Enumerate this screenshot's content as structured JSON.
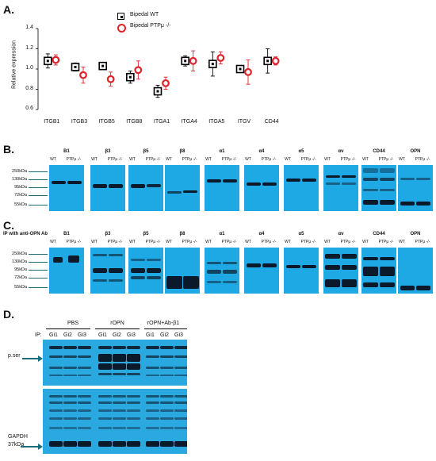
{
  "panelA": {
    "letter": "A.",
    "ylabel": "Relative expression",
    "legend": [
      "Bipedal WT",
      "Bipedal PTPμ -/-"
    ]
  },
  "chart_data": {
    "type": "scatter",
    "categories": [
      "ITGB1",
      "ITGB3",
      "ITGB5",
      "ITGB8",
      "ITGA1",
      "ITGA4",
      "ITGA5",
      "ITGV",
      "CD44"
    ],
    "ylim": [
      0.6,
      1.4
    ],
    "yticks": [
      "0.6",
      "0.8",
      "1.0",
      "1.2",
      "1.4"
    ],
    "series": [
      {
        "name": "Bipedal WT",
        "values": [
          1.08,
          1.02,
          1.03,
          0.92,
          0.78,
          1.08,
          1.05,
          1.0,
          1.08
        ],
        "err": [
          0.07,
          0.04,
          0.02,
          0.06,
          0.06,
          0.05,
          0.12,
          0.03,
          0.12
        ],
        "color": "#000000"
      },
      {
        "name": "Bipedal PTPμ -/-",
        "values": [
          1.09,
          0.94,
          0.9,
          0.99,
          0.86,
          1.08,
          1.11,
          0.97,
          1.08
        ],
        "err": [
          0.05,
          0.08,
          0.07,
          0.09,
          0.06,
          0.1,
          0.06,
          0.12,
          0.04
        ],
        "color": "#e0202a"
      }
    ]
  },
  "panelB": {
    "letter": "B.",
    "labels": [
      "B1",
      "β3",
      "β5",
      "β8",
      "α1",
      "α4",
      "α5",
      "αv",
      "CD44",
      "OPN"
    ],
    "wt": "WT",
    "ko": "PTPμ -/-",
    "mw": [
      "250kDa",
      "130kDa",
      "95kDa",
      "72kDa",
      "55kDa"
    ]
  },
  "panelC": {
    "letter": "C.",
    "ip_label": "IP with anti-OPN Ab",
    "labels": [
      "B1",
      "β3",
      "β5",
      "β8",
      "α1",
      "α4",
      "α5",
      "αv",
      "CD44",
      "OPN"
    ],
    "wt": "WT",
    "ko": "PTPμ -/-",
    "mw": [
      "250kDa",
      "130kDa",
      "95kDa",
      "72kDa",
      "55kDa"
    ]
  },
  "panelD": {
    "letter": "D.",
    "groups": [
      "PBS",
      "rOPN",
      "rOPN+Ab-β1"
    ],
    "ip": "IP:",
    "lanes": [
      "Gi1",
      "Gi2",
      "Gi3",
      "Gi1",
      "Gi2",
      "Gi3",
      "Gi1",
      "Gi2",
      "Gi3"
    ],
    "pser": "p.ser",
    "gapdh": "GAPDH",
    "gapdh_mw": "37kDa"
  },
  "colors": {
    "blot": "#1ea8e4",
    "band": "#0b1a2a",
    "wt": "#000000",
    "ko": "#e0202a"
  }
}
